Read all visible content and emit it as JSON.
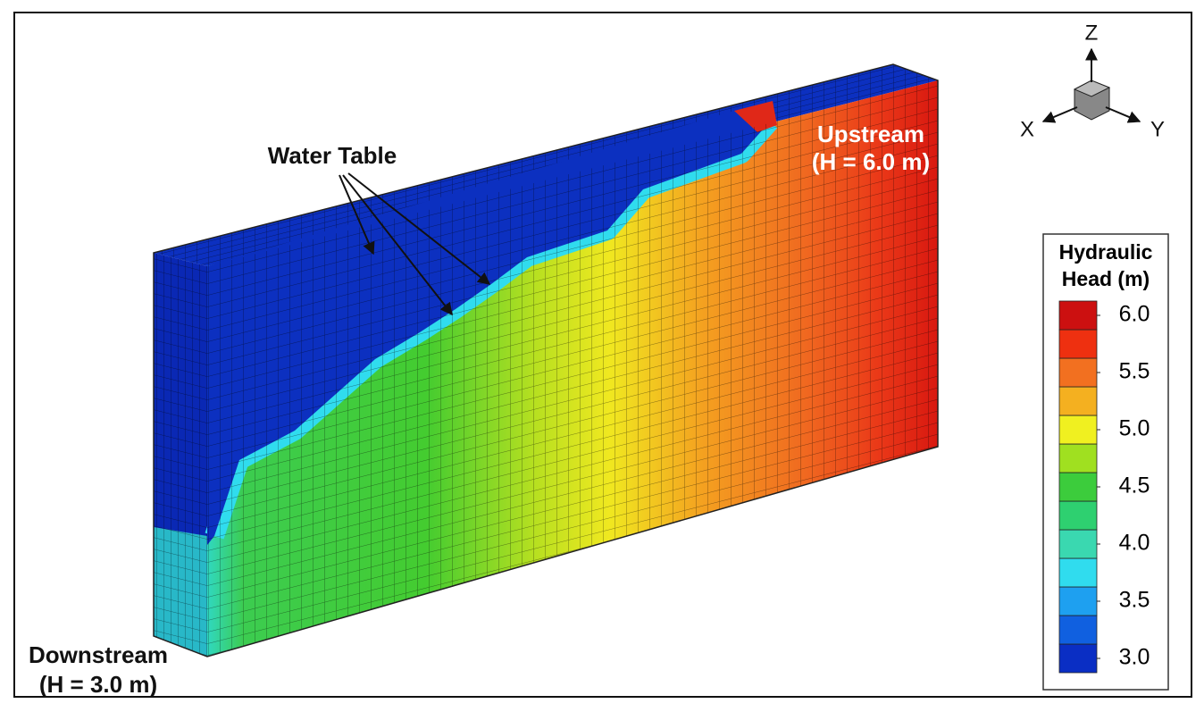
{
  "annotations": {
    "water_table": "Water Table",
    "upstream": [
      "Upstream",
      "(H = 6.0 m)"
    ],
    "downstream": [
      "Downstream",
      "(H = 3.0 m)"
    ]
  },
  "axes_triad": {
    "z": "Z",
    "x": "X",
    "y": "Y"
  },
  "colorbar": {
    "title": [
      "Hydraulic",
      "Head (m)"
    ],
    "lim": [
      2.875,
      6.125
    ],
    "colors": [
      "#0a2ec4",
      "#1060e0",
      "#1ea0f0",
      "#30dcee",
      "#3ad8b0",
      "#2ed070",
      "#3ccc3c",
      "#a0e020",
      "#f0f020",
      "#f4b020",
      "#f27020",
      "#ee3010",
      "#cc1010"
    ],
    "ticks": [
      {
        "value": 3,
        "label": "3.0"
      },
      {
        "value": 3.5,
        "label": "3.5"
      },
      {
        "value": 4,
        "label": "4.0"
      },
      {
        "value": 4.5,
        "label": "4.5"
      },
      {
        "value": 5,
        "label": "5.0"
      },
      {
        "value": 5.5,
        "label": "5.5"
      },
      {
        "value": 6,
        "label": "6.0"
      }
    ]
  }
}
